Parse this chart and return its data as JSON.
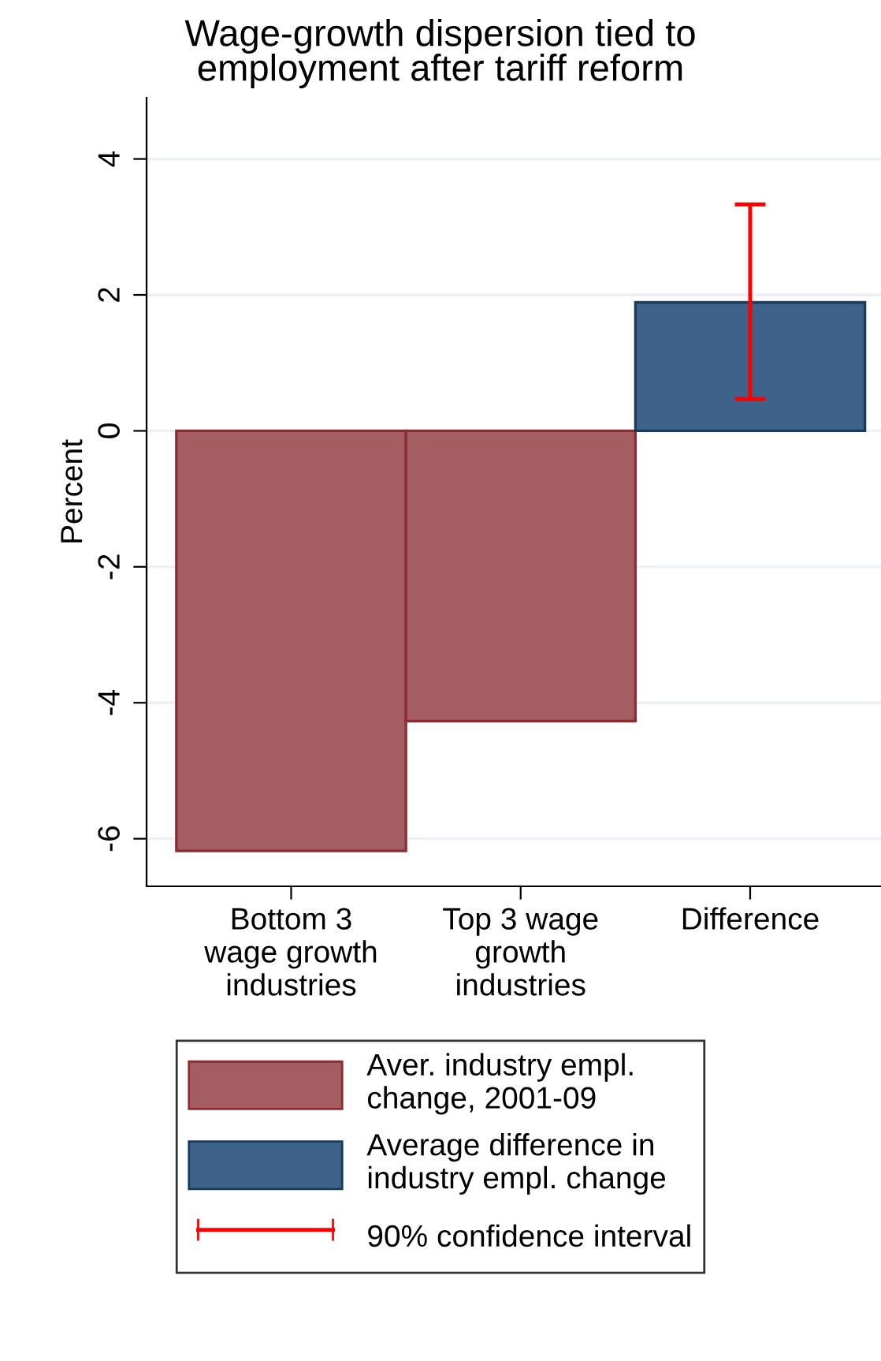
{
  "chart_data": {
    "type": "bar",
    "title": "Wage-growth dispersion tied to\nemployment after tariff reform",
    "ylabel": "Percent",
    "categories": [
      "Bottom 3\nwage growth\nindustries",
      "Top 3 wage\ngrowth\nindustries",
      "Difference"
    ],
    "series": [
      {
        "name": "Aver. industry empl.\nchange, 2001-09",
        "color": "#a45e61",
        "values": [
          -6.18,
          -4.27,
          null
        ]
      },
      {
        "name": "Average difference in\nindustry empl. change",
        "color": "#3e6289",
        "values": [
          null,
          null,
          1.89
        ],
        "errors": [
          null,
          null,
          [
            0.47,
            3.33
          ]
        ]
      }
    ],
    "annotations": [
      "90% confidence interval"
    ],
    "ylim": [
      -6.7,
      4.9
    ],
    "yticks": [
      -6,
      -4,
      -2,
      0,
      2,
      4
    ],
    "grid": "y",
    "legend": "bottom"
  }
}
